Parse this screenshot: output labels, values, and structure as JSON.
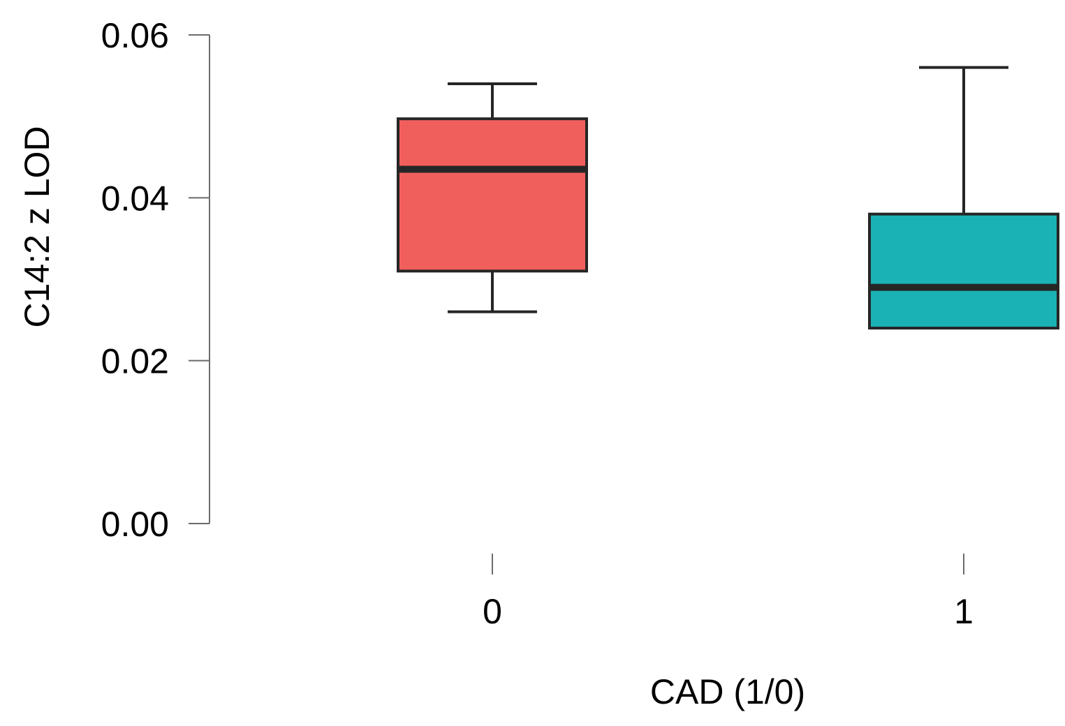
{
  "chart_data": {
    "type": "boxplot",
    "title": "",
    "xlabel": "CAD (1/0)",
    "ylabel": "C14:2 z LOD",
    "ylim": [
      0,
      0.06
    ],
    "y_ticks": [
      "0.00",
      "0.02",
      "0.04",
      "0.06"
    ],
    "categories": [
      "0",
      "1"
    ],
    "boxes": [
      {
        "category": "0",
        "whisker_low": 0.026,
        "q1": 0.031,
        "median": 0.0435,
        "q3": 0.0497,
        "whisker_high": 0.054,
        "color": "#F15F5D"
      },
      {
        "category": "1",
        "whisker_low": 0.024,
        "q1": 0.024,
        "median": 0.029,
        "q3": 0.038,
        "whisker_high": 0.056,
        "color": "#1AB2B4"
      }
    ],
    "grid": false,
    "legend": "none"
  }
}
